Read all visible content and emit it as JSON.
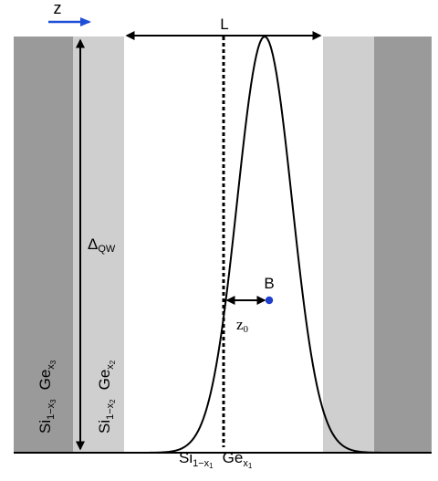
{
  "axis": {
    "direction_label": "z",
    "arrow_color": "#1f4fd6"
  },
  "labels": {
    "well_width": "L",
    "barrier_height_main": "Δ",
    "barrier_height_sub": "QW",
    "point": "B",
    "offset_main": "z",
    "offset_sub": "0",
    "left_outer": {
      "si": "Si",
      "si_sub": "1−x",
      "si_subsub": "3",
      "ge": "Ge",
      "ge_sub": "x",
      "ge_subsub": "3"
    },
    "left_inner": {
      "si": "Si",
      "si_sub": "1−x",
      "si_subsub": "2",
      "ge": "Ge",
      "ge_sub": "x",
      "ge_subsub": "2"
    },
    "center": {
      "si": "Si",
      "si_sub": "1−x",
      "si_subsub": "1",
      "ge": "Ge",
      "ge_sub": "x",
      "ge_subsub": "1"
    }
  },
  "colors": {
    "outer_layer": "#9a9a9a",
    "inner_layer": "#cfcfcf",
    "line": "#000000",
    "point": "#1f3fd0"
  },
  "icons": {
    "direction_arrow": "right-arrow-icon",
    "width_arrow": "double-arrow-icon",
    "height_arrow": "vertical-double-arrow-icon",
    "offset_arrow": "double-arrow-icon"
  }
}
